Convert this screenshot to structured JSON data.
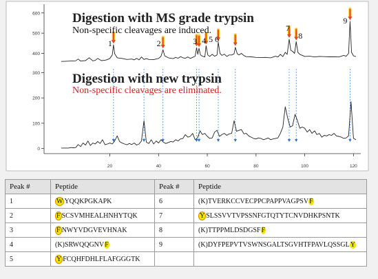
{
  "chart_data": {
    "type": "line",
    "panels": [
      {
        "heading": "Digestion with MS grade trypsin",
        "subtitle": "Non-specific cleavages are induced.",
        "yticks": [
          400,
          500,
          600
        ],
        "ylim": [
          330,
          630
        ],
        "peak_labels": [
          "1",
          "2",
          "3",
          "4",
          "5",
          "6",
          "7",
          "8",
          "9"
        ],
        "peak_x": [
          21.5,
          41.8,
          55.6,
          56.6,
          59.5,
          64.5,
          71.5,
          93.6,
          96.5,
          118.6
        ],
        "x": [
          0,
          2,
          4,
          6,
          7,
          8,
          10,
          11.5,
          13,
          14,
          15,
          16.5,
          18,
          19,
          20,
          21,
          21.5,
          22,
          23,
          25,
          27,
          29,
          30,
          31,
          32,
          33,
          34,
          35,
          36,
          38,
          40,
          41,
          41.8,
          42.5,
          44,
          46,
          47,
          48,
          49,
          50,
          51,
          52,
          53,
          54,
          55,
          55.6,
          56.1,
          56.6,
          57.2,
          58,
          59,
          59.5,
          60.2,
          61,
          62,
          63,
          64,
          64.5,
          65.2,
          66,
          67,
          68,
          69,
          70,
          71,
          71.5,
          72.3,
          73,
          74,
          75,
          76,
          78,
          80,
          82,
          84,
          86,
          88,
          89,
          90,
          91,
          92,
          92.8,
          93.6,
          94.3,
          95,
          95.8,
          96.5,
          97.2,
          98,
          100,
          102,
          104,
          106,
          108,
          110,
          112,
          114,
          116,
          117,
          118,
          118.6,
          119.2,
          120,
          121
        ],
        "y": [
          360,
          361,
          362,
          363,
          372,
          362,
          364,
          378,
          363,
          365,
          375,
          364,
          366,
          369,
          375,
          392,
          442,
          398,
          378,
          375,
          370,
          372,
          368,
          375,
          368,
          382,
          370,
          374,
          370,
          369,
          375,
          385,
          418,
          388,
          378,
          374,
          380,
          376,
          384,
          378,
          376,
          382,
          375,
          380,
          386,
          428,
          395,
          425,
          392,
          386,
          382,
          438,
          392,
          385,
          395,
          386,
          392,
          455,
          400,
          390,
          396,
          385,
          392,
          392,
          398,
          430,
          398,
          392,
          400,
          389,
          384,
          383,
          380,
          379,
          380,
          378,
          386,
          382,
          395,
          384,
          405,
          395,
          470,
          415,
          410,
          400,
          458,
          405,
          395,
          385,
          386,
          382,
          385,
          384,
          383,
          383,
          382,
          390,
          386,
          400,
          558,
          405,
          388,
          384
        ]
      },
      {
        "heading": "Digestion with new trypsin",
        "subtitle": "Non-specific cleavages are eliminated.",
        "yticks": [
          0,
          100,
          200,
          300
        ],
        "ylim": [
          -20,
          320
        ],
        "arrow_x": [
          21.5,
          34.0,
          41.8,
          55.6,
          56.6,
          64.5,
          71.5,
          93.6,
          96.5,
          118.6
        ],
        "x": [
          0,
          1,
          2,
          3,
          4,
          5,
          6,
          7,
          8,
          9,
          10,
          11,
          12,
          13,
          14,
          15,
          16,
          17,
          18,
          19,
          20,
          21,
          22,
          23,
          24,
          25,
          26,
          27,
          28,
          29,
          30,
          31,
          32,
          33,
          34,
          35,
          36,
          37,
          38,
          39,
          40,
          41,
          42,
          43,
          44,
          45,
          46,
          47,
          48,
          49,
          50,
          51,
          52,
          53,
          54,
          55,
          56,
          57,
          58,
          59,
          60,
          61,
          62,
          63,
          64,
          65,
          66,
          67,
          68,
          69,
          70,
          71,
          72,
          73,
          74,
          75,
          76,
          77,
          78,
          79,
          80,
          81,
          82,
          83,
          84,
          85,
          86,
          87,
          88,
          89,
          90,
          91,
          92,
          93,
          94,
          95,
          96,
          97,
          98,
          99,
          100,
          101,
          102,
          103,
          104,
          105,
          106,
          107,
          108,
          109,
          110,
          111,
          112,
          113,
          114,
          115,
          116,
          117,
          118,
          119,
          120,
          121
        ],
        "y": [
          2,
          2,
          2,
          2,
          4,
          3,
          4,
          16,
          8,
          22,
          14,
          30,
          12,
          22,
          18,
          28,
          20,
          35,
          15,
          18,
          22,
          18,
          30,
          50,
          28,
          22,
          18,
          15,
          20,
          16,
          22,
          14,
          18,
          30,
          110,
          25,
          20,
          35,
          18,
          30,
          22,
          35,
          25,
          20,
          24,
          28,
          26,
          35,
          30,
          38,
          40,
          55,
          45,
          48,
          60,
          35,
          42,
          70,
          55,
          60,
          48,
          40,
          42,
          65,
          72,
          48,
          55,
          60,
          52,
          58,
          60,
          110,
          68,
          72,
          75,
          58,
          60,
          50,
          45,
          40,
          38,
          42,
          40,
          35,
          38,
          42,
          35,
          38,
          40,
          42,
          60,
          85,
          165,
          120,
          85,
          90,
          135,
          110,
          80,
          85,
          80,
          65,
          75,
          60,
          70,
          55,
          60,
          45,
          52,
          50,
          55,
          52,
          60,
          50,
          48,
          45,
          40,
          42,
          50,
          185,
          40,
          35
        ]
      }
    ],
    "xticks": [
      20,
      40,
      60,
      80,
      100,
      120
    ],
    "xlim": [
      -7,
      123
    ],
    "colors": {
      "trace": "#222222",
      "arrow": "#e9441c",
      "arrow_glow": "#f7c21a",
      "guide": "#4f8ee0",
      "marker": "#2f6fc8",
      "subtitle_red": "#d02020"
    }
  },
  "table": {
    "headers": [
      "Peak #",
      "Peptide",
      "Peak #",
      "Peptide"
    ],
    "rows": [
      {
        "l_num": "1",
        "l_pre": "",
        "l_hl": "W",
        "l_post": "YQQKPGKAPK",
        "r_num": "6",
        "r_pre": "(K)TVERKCCVECPPCPAPPVAGPSV",
        "r_hl": "F",
        "r_post": ""
      },
      {
        "l_num": "2",
        "l_pre": "",
        "l_hl": "F",
        "l_post": "SCSVMHEALHNHYTQK",
        "r_num": "7",
        "r_pre": "",
        "r_hl": "Y",
        "r_post": "SLSSVVTVPSSNFGTQTYTCNVDHKPSNTK"
      },
      {
        "l_num": "3",
        "l_pre": "",
        "l_hl": "F",
        "l_post": "NWYVDGVEVHNAK",
        "r_num": "8",
        "r_pre": "(K)TTPPMLDSDGSF",
        "r_hl": "F",
        "r_post": ""
      },
      {
        "l_num": "4",
        "l_pre": "(K)SRWQQGNV",
        "l_hl": "F",
        "l_post": "",
        "r_num": "9",
        "r_pre": "(K)DYFPEPVTVSWNSGALTSGVHTFPAVLQSSGL",
        "r_hl": "Y",
        "r_post": ""
      },
      {
        "l_num": "5",
        "l_pre": "",
        "l_hl": "Y",
        "l_post": "FCQHFDHLFLAFGGGTK",
        "r_num": "",
        "r_pre": "",
        "r_hl": "",
        "r_post": ""
      }
    ]
  }
}
